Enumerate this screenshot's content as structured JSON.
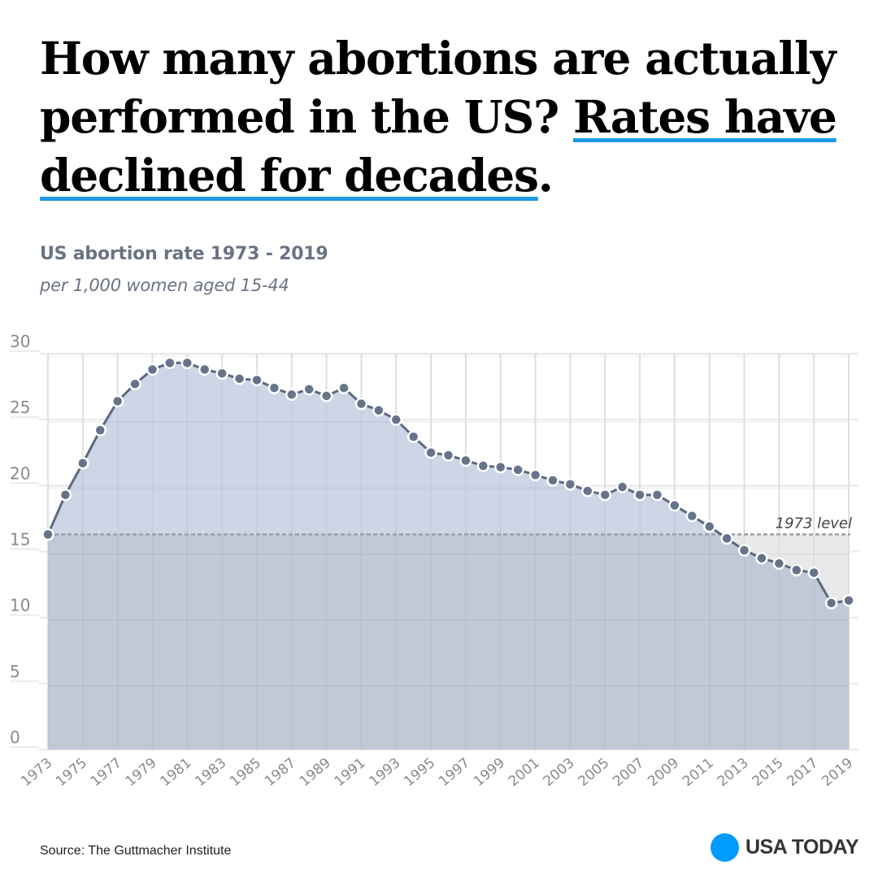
{
  "headline": {
    "part1": "How many abortions are actually performed in the US? ",
    "highlight": "Rates have declined for decades",
    "end": "."
  },
  "subtitle": "US abortion rate 1973 - 2019",
  "subtitle2": "per 1,000 women aged 15-44",
  "source": "Source: The Guttmacher Institute",
  "brand": "USA TODAY",
  "colors": {
    "accent_underline": "#1e9be6",
    "brand_dot": "#009bff",
    "area_above_ref": "#cdd5e6",
    "area_below_ref": "#c1c8d6",
    "gap_below_ref": "#e9e9ea",
    "line": "#5d6980",
    "point": "#66748a"
  },
  "chart_data": {
    "type": "area",
    "title": "US abortion rate 1973 - 2019",
    "subtitle": "per 1,000 women aged 15-44",
    "xlabel": "",
    "ylabel": "",
    "x": [
      1973,
      1974,
      1975,
      1976,
      1977,
      1978,
      1979,
      1980,
      1981,
      1982,
      1983,
      1984,
      1985,
      1986,
      1987,
      1988,
      1989,
      1990,
      1991,
      1992,
      1993,
      1994,
      1995,
      1996,
      1997,
      1998,
      1999,
      2000,
      2001,
      2002,
      2003,
      2004,
      2005,
      2006,
      2007,
      2008,
      2009,
      2010,
      2011,
      2012,
      2013,
      2014,
      2015,
      2016,
      2017,
      2018,
      2019
    ],
    "series": [
      {
        "name": "Abortion rate",
        "values": [
          16.3,
          19.3,
          21.7,
          24.2,
          26.4,
          27.7,
          28.8,
          29.3,
          29.3,
          28.8,
          28.5,
          28.1,
          28.0,
          27.4,
          26.9,
          27.3,
          26.8,
          27.4,
          26.2,
          25.7,
          25.0,
          23.7,
          22.5,
          22.3,
          21.9,
          21.5,
          21.4,
          21.2,
          20.8,
          20.4,
          20.1,
          19.6,
          19.3,
          19.9,
          19.3,
          19.3,
          18.5,
          17.7,
          16.9,
          16.0,
          15.1,
          14.5,
          14.1,
          13.6,
          13.4,
          11.1,
          11.3
        ]
      }
    ],
    "reference_line": {
      "label": "1973 level",
      "value": 16.3
    },
    "x_tick_labels": [
      "1973",
      "1975",
      "1977",
      "1979",
      "1981",
      "1983",
      "1985",
      "1987",
      "1989",
      "1991",
      "1993",
      "1995",
      "1997",
      "1999",
      "2001",
      "2003",
      "2005",
      "2007",
      "2009",
      "2011",
      "2013",
      "2015",
      "2017",
      "2019"
    ],
    "y_ticks": [
      0,
      5,
      10,
      15,
      20,
      25,
      30
    ],
    "ylim": [
      0,
      30
    ],
    "xlim": [
      1973,
      2019
    ],
    "grid": true,
    "legend": "none"
  }
}
